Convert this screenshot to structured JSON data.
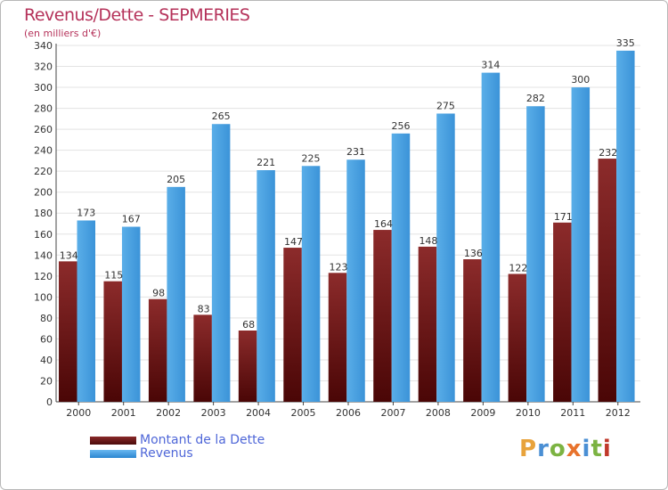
{
  "header": {
    "title": "Revenus/Dette - SEPMERIES",
    "subtitle": "(en milliers d'€)"
  },
  "legend": {
    "debt_label": "Montant de la Dette",
    "revenue_label": "Revenus"
  },
  "logo": {
    "letters": [
      "P",
      "r",
      "o",
      "x",
      "i",
      "t",
      "i"
    ],
    "colors": [
      "#e8a33c",
      "#4a8fd4",
      "#7cb342",
      "#e8732c",
      "#4a8fd4",
      "#7cb342",
      "#c0392b"
    ]
  },
  "colors": {
    "debt": "#7a1e1e",
    "revenue": "#3e9ae0",
    "grid": "#e3e3e3",
    "axis_text": "#333333"
  },
  "chart_data": {
    "type": "bar",
    "title": "Revenus/Dette - SEPMERIES",
    "subtitle": "(en milliers d'€)",
    "categories": [
      "2000",
      "2001",
      "2002",
      "2003",
      "2004",
      "2005",
      "2006",
      "2007",
      "2008",
      "2009",
      "2010",
      "2011",
      "2012"
    ],
    "series": [
      {
        "name": "Montant de la Dette",
        "values": [
          134,
          115,
          98,
          83,
          68,
          147,
          123,
          164,
          148,
          136,
          122,
          171,
          232
        ]
      },
      {
        "name": "Revenus",
        "values": [
          173,
          167,
          205,
          265,
          221,
          225,
          231,
          256,
          275,
          314,
          282,
          300,
          335
        ]
      }
    ],
    "ylim": [
      0,
      340
    ],
    "yticks": [
      0,
      20,
      40,
      60,
      80,
      100,
      120,
      140,
      160,
      180,
      200,
      220,
      240,
      260,
      280,
      300,
      320,
      340
    ],
    "grid": true,
    "legend_position": "bottom-left"
  }
}
